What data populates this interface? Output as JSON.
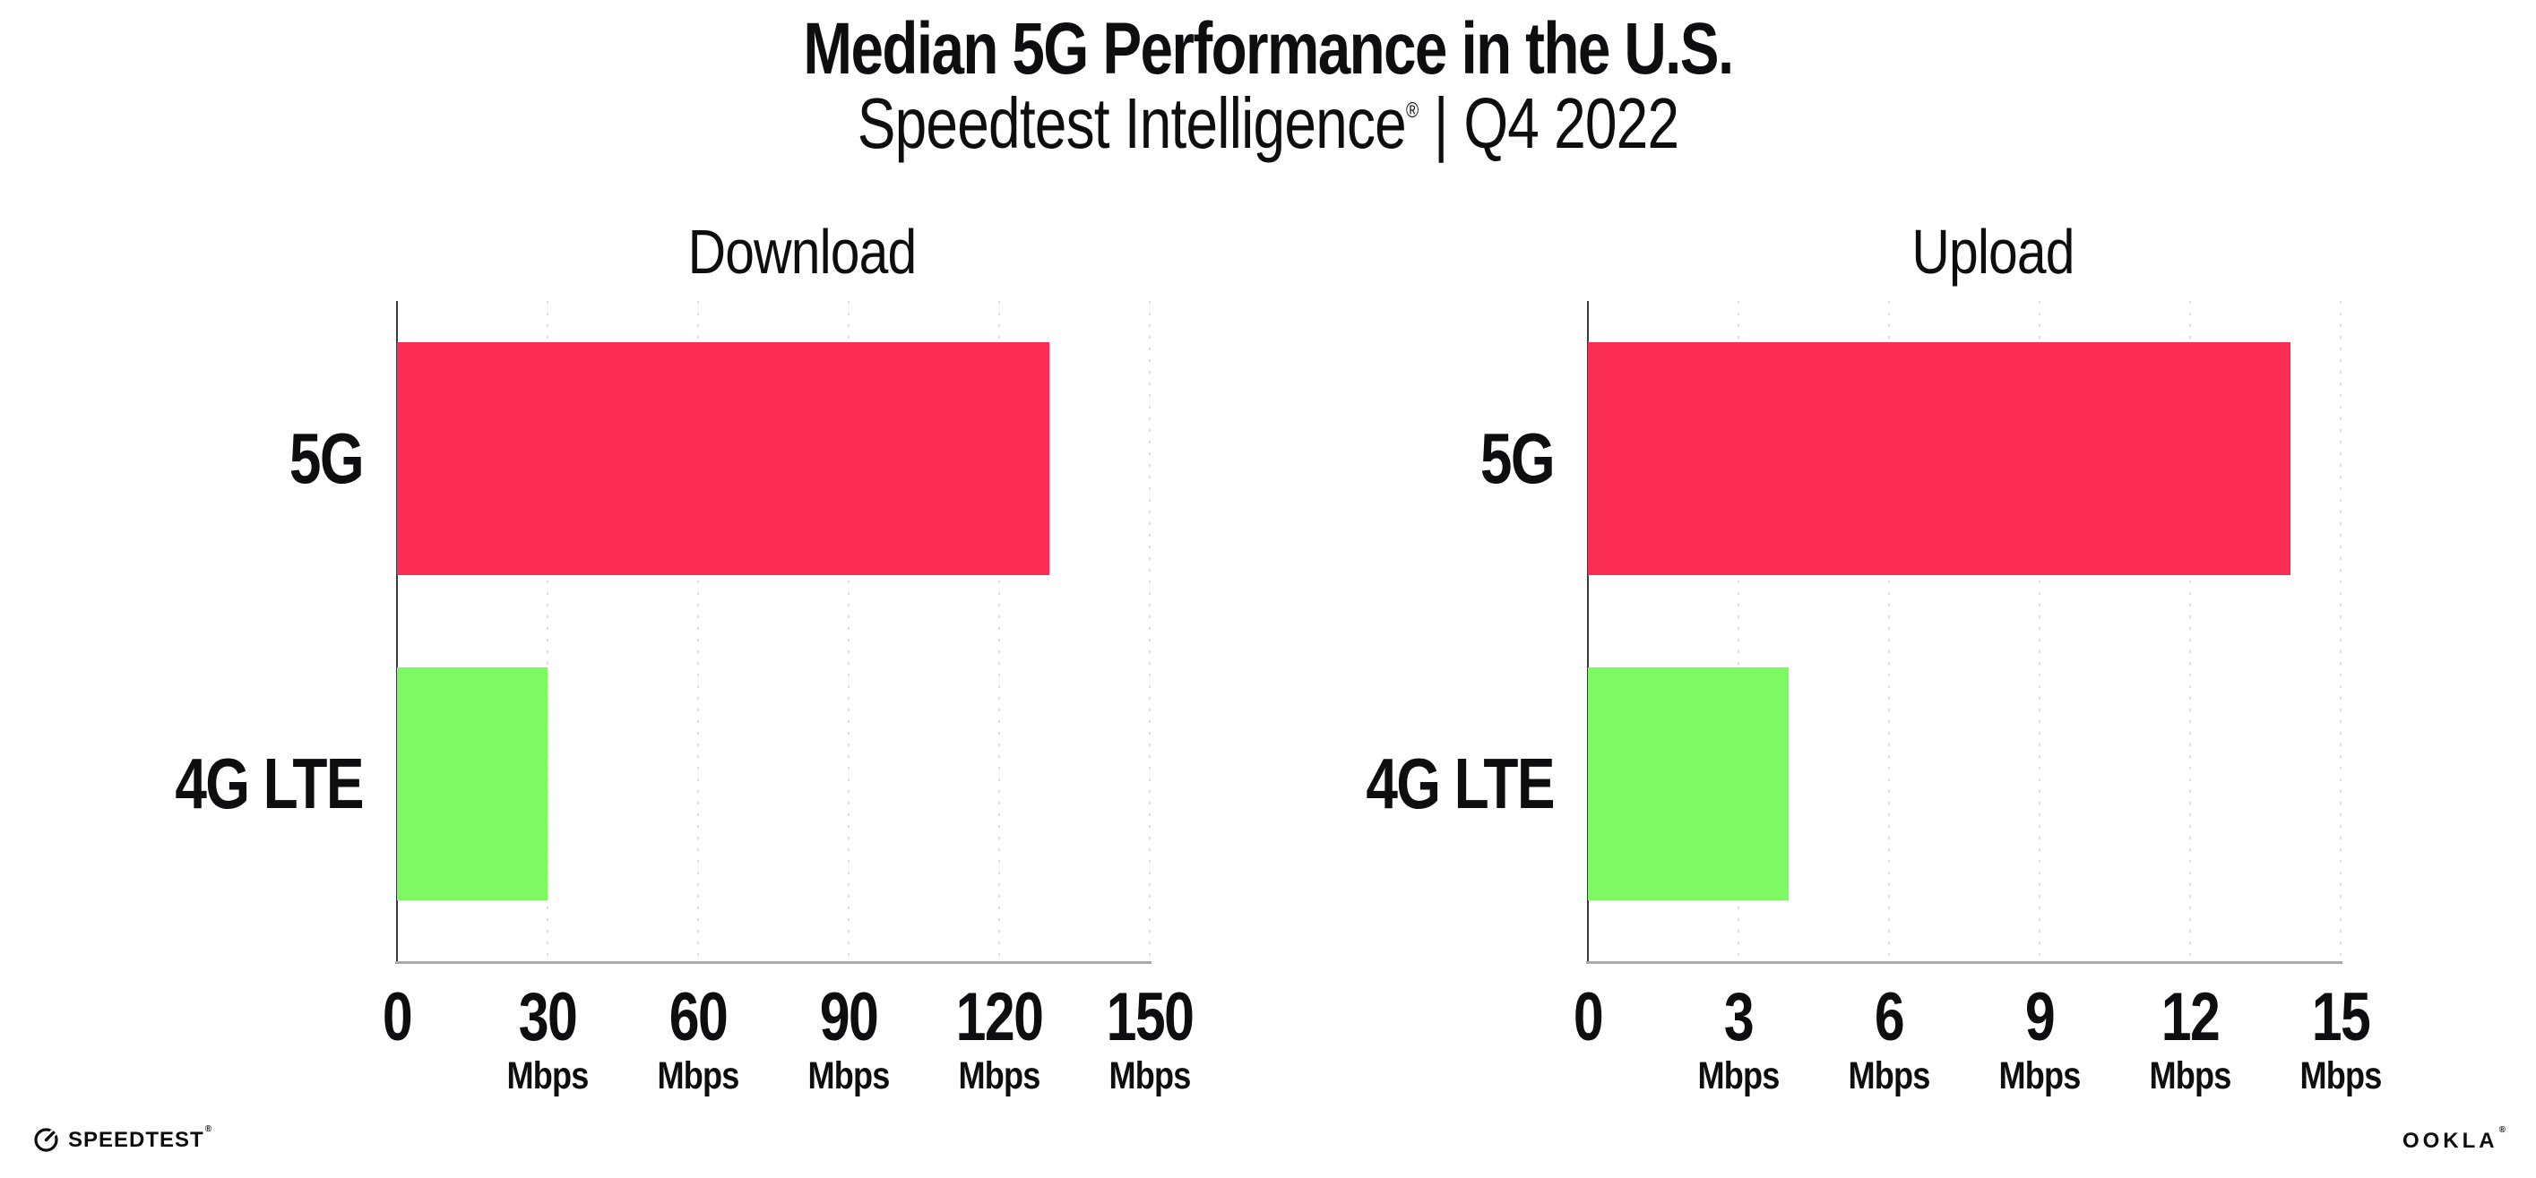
{
  "page": {
    "background": "#FFFFFF"
  },
  "header": {
    "title": "Median 5G Performance in the U.S.",
    "subtitle": {
      "brand": "Speedtest Intelligence",
      "registered_mark": "®",
      "separator": "|",
      "period": "Q4 2022"
    }
  },
  "chart_data": [
    {
      "type": "bar",
      "orientation": "horizontal",
      "title": "Download",
      "unit": "Mbps",
      "categories": [
        "5G",
        "4G LTE"
      ],
      "values": [
        130,
        30
      ],
      "xlim": [
        0,
        150
      ],
      "xticks": [
        0,
        30,
        60,
        90,
        120,
        150
      ],
      "series_colors": {
        "5G": "#FC2D55",
        "4G LTE": "#7DF963"
      },
      "grid": "vertical-dotted",
      "legend": "none"
    },
    {
      "type": "bar",
      "orientation": "horizontal",
      "title": "Upload",
      "unit": "Mbps",
      "categories": [
        "5G",
        "4G LTE"
      ],
      "values": [
        14,
        4
      ],
      "xlim": [
        0,
        15
      ],
      "xticks": [
        0,
        3,
        6,
        9,
        12,
        15
      ],
      "series_colors": {
        "5G": "#FC2D55",
        "4G LTE": "#7DF963"
      },
      "grid": "vertical-dotted",
      "legend": "none"
    }
  ],
  "footer": {
    "speedtest_wordmark": "SPEEDTEST",
    "speedtest_mark": "®",
    "ookla_wordmark": "OOKLA",
    "ookla_mark": "®"
  },
  "colors": {
    "bar_5g": "#FC2D55",
    "bar_4g": "#7DF963",
    "gridline": "#DCDCE8",
    "axis_line": "#A9A9B2",
    "axis_spine": "#3A3A44",
    "text": "#0E0E10"
  }
}
